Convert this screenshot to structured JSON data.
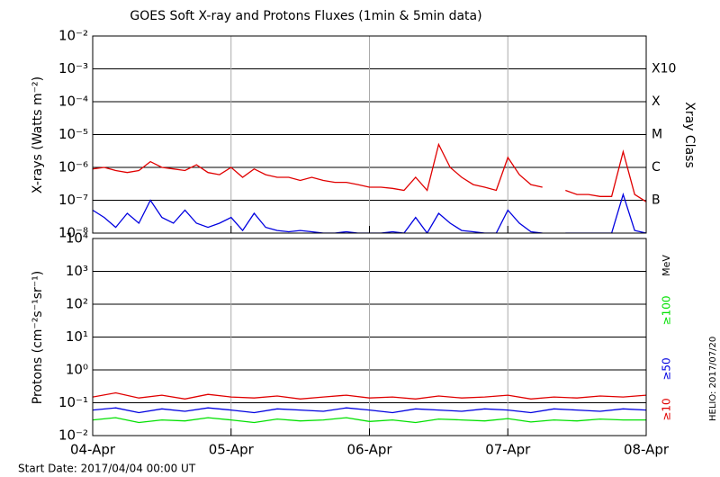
{
  "chart_data": [
    {
      "type": "line",
      "title": "GOES Soft X-ray and Protons Fluxes   (1min & 5min data)",
      "ylabel": "X-rays (Watts m⁻²)",
      "y2label": "Xray Class",
      "log_scale": true,
      "grid": true,
      "x": [
        0,
        2,
        4,
        6,
        8,
        10,
        12,
        14,
        16,
        18,
        20,
        22,
        24,
        26,
        28,
        30,
        32,
        34,
        36,
        38,
        40,
        42,
        44,
        46,
        48,
        50,
        52,
        54,
        56,
        58,
        60,
        62,
        64,
        66,
        68,
        70,
        72,
        74,
        76,
        78,
        80,
        82,
        84,
        86,
        88,
        90,
        92,
        94,
        96
      ],
      "xlim": [
        0,
        96
      ],
      "xticks": [
        0,
        24,
        48,
        72,
        96
      ],
      "ylim": [
        1e-08,
        0.01
      ],
      "yticks": [
        {
          "value": 0.01,
          "label": "10⁻²"
        },
        {
          "value": 0.001,
          "label": "10⁻³"
        },
        {
          "value": 0.0001,
          "label": "10⁻⁴"
        },
        {
          "value": 1e-05,
          "label": "10⁻⁵"
        },
        {
          "value": 1e-06,
          "label": "10⁻⁶"
        },
        {
          "value": 1e-07,
          "label": "10⁻⁷"
        },
        {
          "value": 1e-08,
          "label": "10⁻⁸"
        }
      ],
      "y2ticks": [
        {
          "value": 0.001,
          "label": "X10"
        },
        {
          "value": 0.0001,
          "label": "X"
        },
        {
          "value": 1e-05,
          "label": "M"
        },
        {
          "value": 1e-06,
          "label": "C"
        },
        {
          "value": 1e-07,
          "label": "B"
        }
      ],
      "series": [
        {
          "color": "#e00000",
          "values": [
            9e-07,
            1e-06,
            8e-07,
            7e-07,
            8e-07,
            1.5e-06,
            1e-06,
            9e-07,
            8e-07,
            1.2e-06,
            7e-07,
            6e-07,
            1e-06,
            5e-07,
            9e-07,
            6e-07,
            5e-07,
            5e-07,
            4e-07,
            5e-07,
            4e-07,
            3.5e-07,
            3.5e-07,
            3e-07,
            2.5e-07,
            2.5e-07,
            2.3e-07,
            2e-07,
            5e-07,
            2e-07,
            5e-06,
            1e-06,
            5e-07,
            3e-07,
            2.5e-07,
            2e-07,
            2e-06,
            6e-07,
            3e-07,
            2.5e-07,
            null,
            2e-07,
            1.5e-07,
            1.5e-07,
            1.3e-07,
            1.3e-07,
            3e-06,
            1.5e-07,
            9e-08
          ]
        },
        {
          "color": "#0000e0",
          "values": [
            5e-08,
            3e-08,
            1.5e-08,
            4e-08,
            2e-08,
            1e-07,
            3e-08,
            2e-08,
            5e-08,
            2e-08,
            1.5e-08,
            2e-08,
            3e-08,
            1.2e-08,
            4e-08,
            1.5e-08,
            1.2e-08,
            1.1e-08,
            1.2e-08,
            1.1e-08,
            1e-08,
            1e-08,
            1.1e-08,
            1e-08,
            1e-08,
            1e-08,
            1.1e-08,
            1e-08,
            3e-08,
            1e-08,
            4e-08,
            2e-08,
            1.2e-08,
            1.1e-08,
            1e-08,
            1e-08,
            5e-08,
            2e-08,
            1.1e-08,
            1e-08,
            null,
            1e-08,
            1e-08,
            1e-08,
            1e-08,
            1e-08,
            1.5e-07,
            1.2e-08,
            1e-08
          ]
        }
      ]
    },
    {
      "type": "line",
      "ylabel": "Protons (cm⁻²s⁻¹sr⁻¹)",
      "legend_title": "MeV",
      "log_scale": true,
      "grid": true,
      "threshold": 10,
      "x": [
        0,
        4,
        8,
        12,
        16,
        20,
        24,
        28,
        32,
        36,
        40,
        44,
        48,
        52,
        56,
        60,
        64,
        68,
        72,
        76,
        80,
        84,
        88,
        92,
        96
      ],
      "xlim": [
        0,
        96
      ],
      "xticks": [
        {
          "value": 0,
          "label": "04-Apr"
        },
        {
          "value": 24,
          "label": "05-Apr"
        },
        {
          "value": 48,
          "label": "06-Apr"
        },
        {
          "value": 72,
          "label": "07-Apr"
        },
        {
          "value": 96,
          "label": "08-Apr"
        }
      ],
      "ylim": [
        0.01,
        10000
      ],
      "yticks": [
        {
          "value": 10000,
          "label": "10⁴"
        },
        {
          "value": 1000,
          "label": "10³"
        },
        {
          "value": 100,
          "label": "10²"
        },
        {
          "value": 10,
          "label": "10¹"
        },
        {
          "value": 1,
          "label": "10⁰"
        },
        {
          "value": 0.1,
          "label": "10⁻¹"
        },
        {
          "value": 0.01,
          "label": "10⁻²"
        }
      ],
      "series": [
        {
          "name": "≥100",
          "color": "#00e000",
          "values": [
            0.03,
            0.035,
            0.025,
            0.03,
            0.028,
            0.035,
            0.03,
            0.025,
            0.032,
            0.028,
            0.03,
            0.035,
            0.027,
            0.03,
            0.025,
            0.032,
            0.03,
            0.028,
            0.033,
            0.026,
            0.03,
            0.028,
            0.032,
            0.03,
            0.03
          ]
        },
        {
          "name": "≥50",
          "color": "#0000e0",
          "values": [
            0.06,
            0.07,
            0.05,
            0.065,
            0.055,
            0.07,
            0.06,
            0.05,
            0.065,
            0.06,
            0.055,
            0.07,
            0.06,
            0.05,
            0.065,
            0.06,
            0.055,
            0.065,
            0.06,
            0.05,
            0.065,
            0.06,
            0.055,
            0.065,
            0.06
          ]
        },
        {
          "name": "≥10",
          "color": "#e00000",
          "values": [
            0.15,
            0.2,
            0.14,
            0.17,
            0.13,
            0.18,
            0.15,
            0.14,
            0.16,
            0.13,
            0.15,
            0.17,
            0.14,
            0.15,
            0.13,
            0.16,
            0.14,
            0.15,
            0.17,
            0.13,
            0.15,
            0.14,
            0.16,
            0.15,
            0.17
          ]
        }
      ]
    }
  ],
  "footer": {
    "start_date": "Start Date: 2017/04/04 00:00 UT",
    "stamp": "HELIO: 2017/07/20"
  }
}
